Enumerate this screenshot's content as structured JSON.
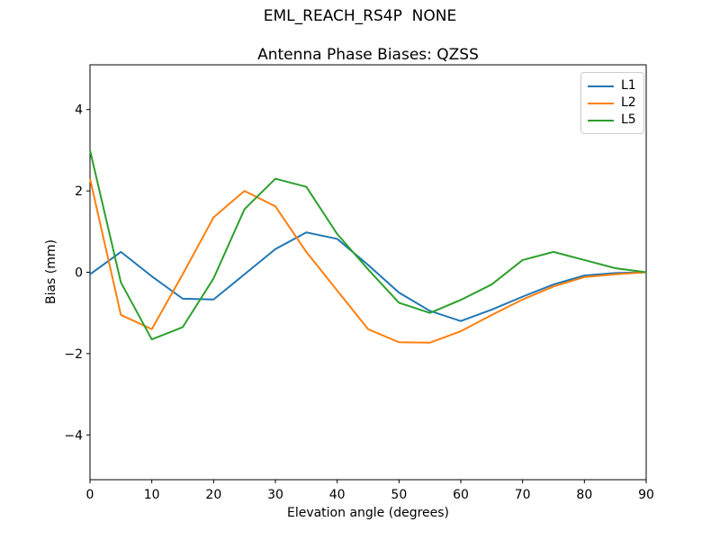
{
  "figure": {
    "suptitle": "EML_REACH_RS4P  NONE"
  },
  "chart_data": {
    "type": "line",
    "suptitle": "EML_REACH_RS4P  NONE",
    "title": "Antenna Phase Biases: QZSS",
    "xlabel": "Elevation angle (degrees)",
    "ylabel": "Bias (mm)",
    "xlim": [
      0,
      90
    ],
    "ylim": [
      -5.1,
      5.1
    ],
    "xticks": [
      0,
      10,
      20,
      30,
      40,
      50,
      60,
      70,
      80,
      90
    ],
    "yticks": [
      -4,
      -2,
      0,
      2,
      4
    ],
    "grid": false,
    "legend_position": "upper right",
    "background_color": "#ffffff",
    "spine_color": "#000000",
    "x": [
      0,
      5,
      10,
      15,
      20,
      25,
      30,
      35,
      40,
      45,
      50,
      55,
      60,
      65,
      70,
      75,
      80,
      85,
      90
    ],
    "series": [
      {
        "name": "L1",
        "color": "#1f77b4",
        "values": [
          -0.05,
          0.5,
          -0.1,
          -0.65,
          -0.67,
          -0.05,
          0.57,
          0.98,
          0.82,
          0.18,
          -0.5,
          -0.95,
          -1.2,
          -0.92,
          -0.6,
          -0.3,
          -0.08,
          -0.02,
          0.0
        ]
      },
      {
        "name": "L2",
        "color": "#ff7f0e",
        "values": [
          2.3,
          -1.05,
          -1.4,
          -0.05,
          1.35,
          2.0,
          1.62,
          0.5,
          -0.45,
          -1.4,
          -1.72,
          -1.73,
          -1.45,
          -1.05,
          -0.67,
          -0.35,
          -0.12,
          -0.05,
          0.0
        ]
      },
      {
        "name": "L5",
        "color": "#2ca02c",
        "values": [
          3.0,
          -0.25,
          -1.65,
          -1.35,
          -0.15,
          1.55,
          2.3,
          2.1,
          0.94,
          0.07,
          -0.75,
          -1.0,
          -0.68,
          -0.3,
          0.3,
          0.5,
          0.3,
          0.1,
          0.0
        ]
      }
    ]
  }
}
